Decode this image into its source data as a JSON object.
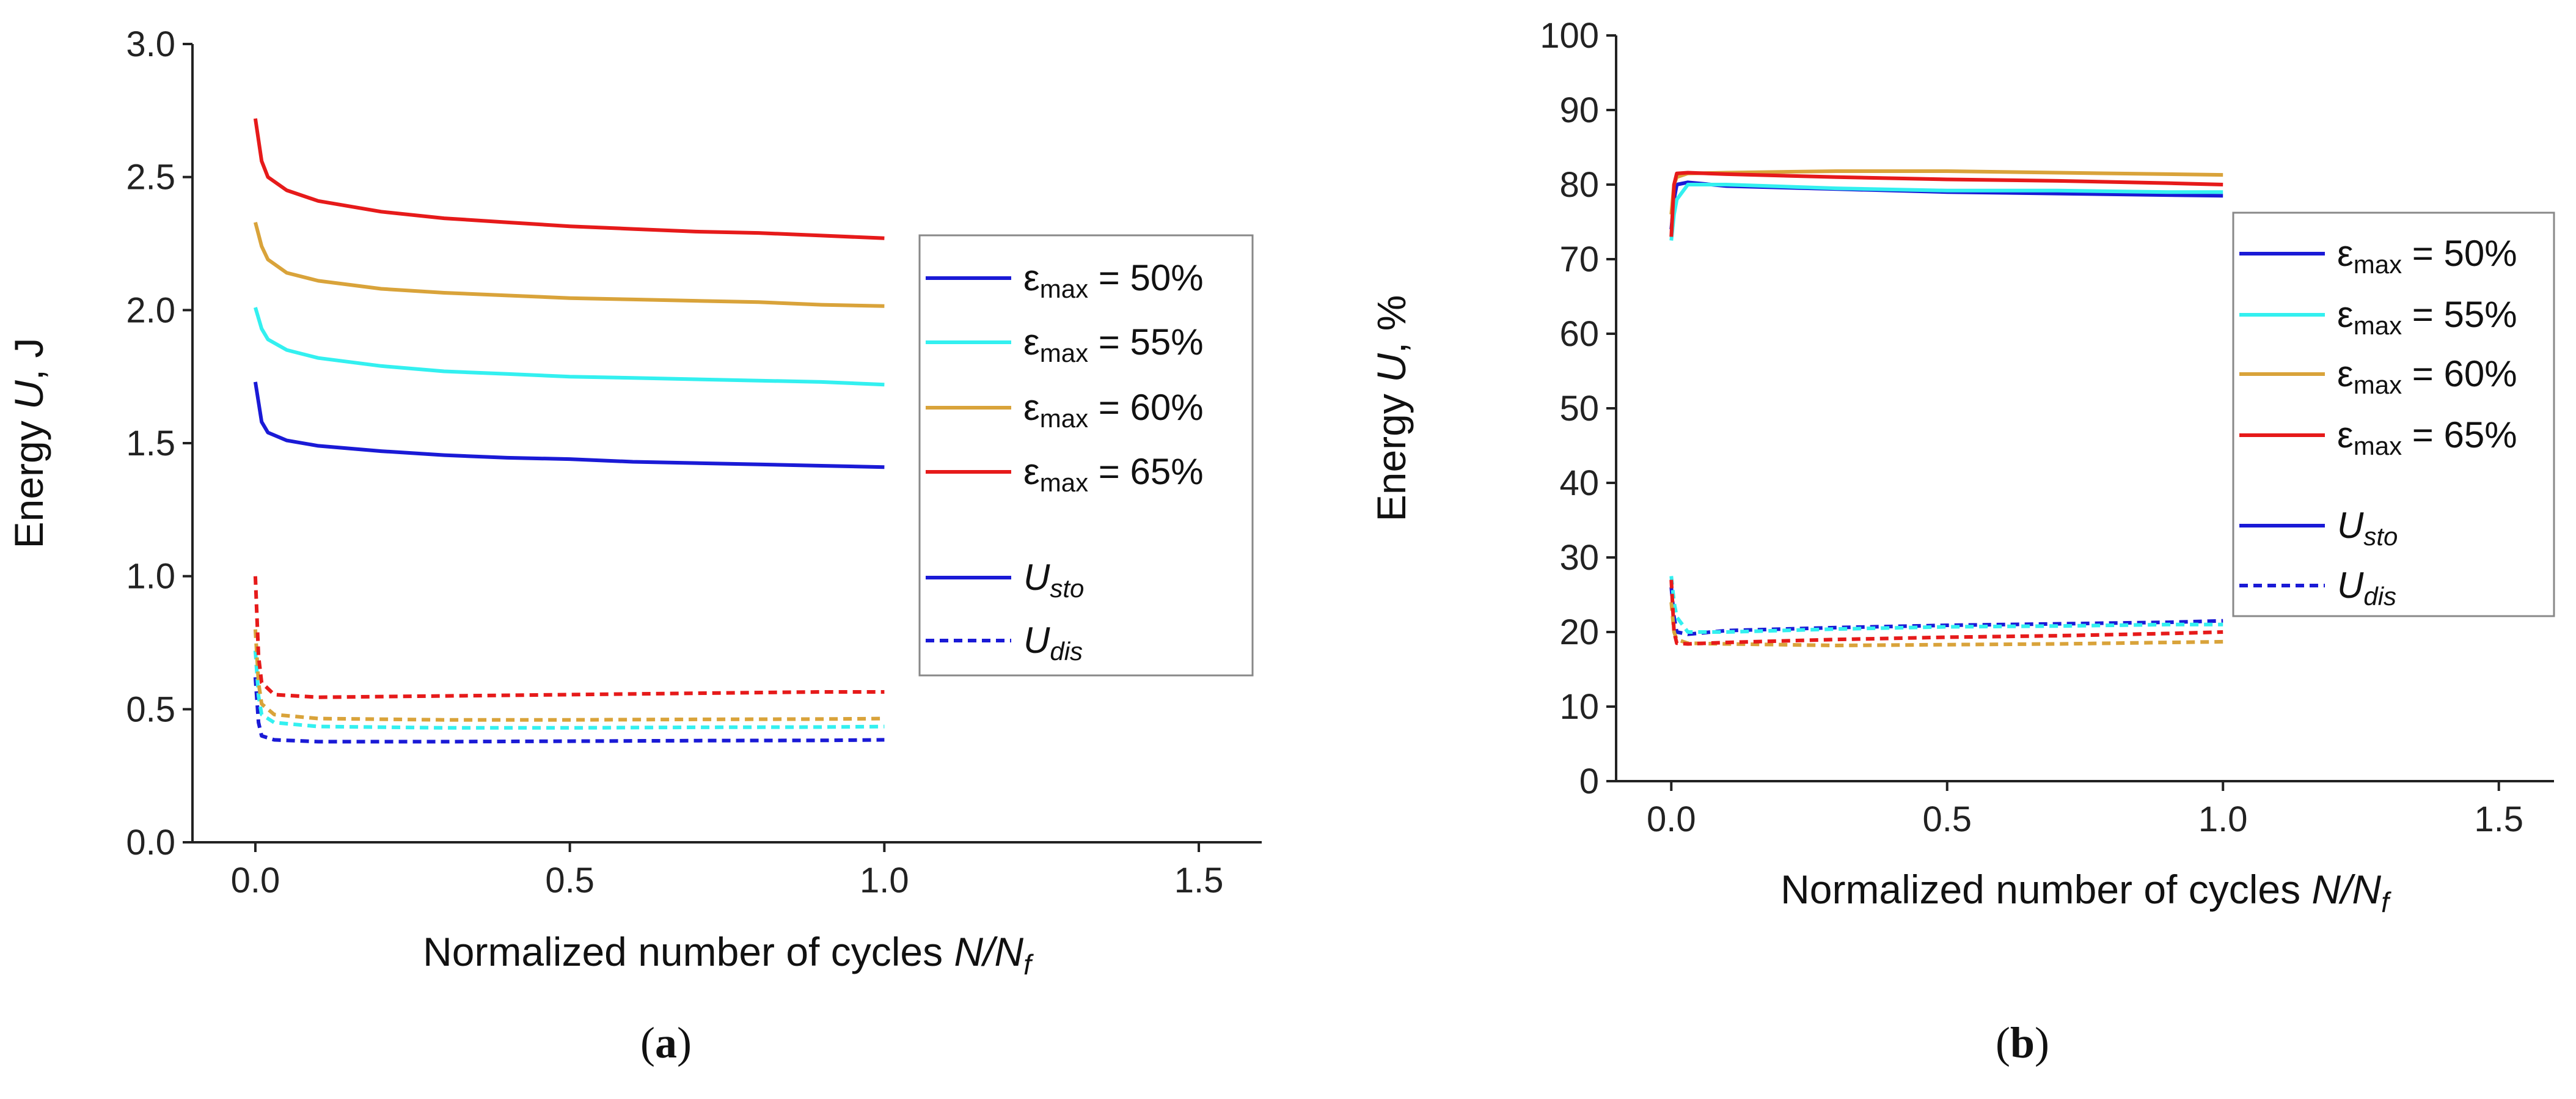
{
  "chart_data": [
    {
      "type": "line",
      "panel": "(a)",
      "panel_letter": "a",
      "xlabel_prefix": "Normalized number of cycles ",
      "xlabel_var": "N/N",
      "xlabel_sub": "f",
      "ylabel_prefix": "Energy ",
      "ylabel_var": "U",
      "ylabel_suffix": ", J",
      "xlim": [
        -0.1,
        1.6
      ],
      "ylim": [
        0.0,
        3.0
      ],
      "xticks": [
        "0.0",
        "0.5",
        "1.0",
        "1.5"
      ],
      "xtick_values": [
        0.0,
        0.5,
        1.0,
        1.5
      ],
      "yticks": [
        "0.0",
        "0.5",
        "1.0",
        "1.5",
        "2.0",
        "2.5",
        "3.0"
      ],
      "ytick_values": [
        0.0,
        0.5,
        1.0,
        1.5,
        2.0,
        2.5,
        3.0
      ],
      "legend": {
        "position": "right",
        "entries": [
          {
            "symbol": "ε",
            "sub": "max",
            "text": " =  50%",
            "color": "#1a1ad6",
            "dash": "solid"
          },
          {
            "symbol": "ε",
            "sub": "max",
            "text": " =  55%",
            "color": "#33f0f0",
            "dash": "solid"
          },
          {
            "symbol": "ε",
            "sub": "max",
            "text": " =  60%",
            "color": "#d9a33a",
            "dash": "solid"
          },
          {
            "symbol": "ε",
            "sub": "max",
            "text": " =  65%",
            "color": "#e61a1a",
            "dash": "solid"
          },
          {
            "symbol": "U",
            "sub": "sto",
            "text": "",
            "color": "#1a1ad6",
            "dash": "solid"
          },
          {
            "symbol": "U",
            "sub": "dis",
            "text": "",
            "color": "#1a1ad6",
            "dash": "dashed"
          }
        ]
      },
      "series": [
        {
          "name": "ε_max = 50% U_sto",
          "color": "#1a1ad6",
          "dash": "solid",
          "x": [
            0.0,
            0.01,
            0.02,
            0.05,
            0.1,
            0.2,
            0.3,
            0.4,
            0.5,
            0.6,
            0.7,
            0.8,
            0.9,
            1.0
          ],
          "y": [
            1.73,
            1.58,
            1.54,
            1.51,
            1.49,
            1.47,
            1.455,
            1.445,
            1.44,
            1.43,
            1.425,
            1.42,
            1.415,
            1.41
          ]
        },
        {
          "name": "ε_max = 55% U_sto",
          "color": "#33f0f0",
          "dash": "solid",
          "x": [
            0.0,
            0.01,
            0.02,
            0.05,
            0.1,
            0.2,
            0.3,
            0.4,
            0.5,
            0.6,
            0.7,
            0.8,
            0.9,
            1.0
          ],
          "y": [
            2.01,
            1.93,
            1.89,
            1.85,
            1.82,
            1.79,
            1.77,
            1.76,
            1.75,
            1.745,
            1.74,
            1.735,
            1.73,
            1.72
          ]
        },
        {
          "name": "ε_max = 60% U_sto",
          "color": "#d9a33a",
          "dash": "solid",
          "x": [
            0.0,
            0.01,
            0.02,
            0.05,
            0.1,
            0.2,
            0.3,
            0.4,
            0.5,
            0.6,
            0.7,
            0.8,
            0.9,
            1.0
          ],
          "y": [
            2.33,
            2.24,
            2.19,
            2.14,
            2.11,
            2.08,
            2.065,
            2.055,
            2.045,
            2.04,
            2.035,
            2.03,
            2.02,
            2.015
          ]
        },
        {
          "name": "ε_max = 65% U_sto",
          "color": "#e61a1a",
          "dash": "solid",
          "x": [
            0.0,
            0.01,
            0.02,
            0.05,
            0.1,
            0.2,
            0.3,
            0.4,
            0.5,
            0.6,
            0.7,
            0.8,
            0.9,
            1.0
          ],
          "y": [
            2.72,
            2.56,
            2.5,
            2.45,
            2.41,
            2.37,
            2.345,
            2.33,
            2.315,
            2.305,
            2.295,
            2.29,
            2.28,
            2.27
          ]
        },
        {
          "name": "ε_max = 50% U_dis",
          "color": "#1a1ad6",
          "dash": "dashed",
          "x": [
            0.0,
            0.005,
            0.01,
            0.03,
            0.1,
            0.3,
            0.5,
            0.7,
            0.9,
            1.0
          ],
          "y": [
            0.62,
            0.45,
            0.4,
            0.385,
            0.378,
            0.378,
            0.38,
            0.382,
            0.383,
            0.385
          ]
        },
        {
          "name": "ε_max = 55% U_dis",
          "color": "#33f0f0",
          "dash": "dashed",
          "x": [
            0.0,
            0.005,
            0.01,
            0.03,
            0.1,
            0.3,
            0.5,
            0.7,
            0.9,
            1.0
          ],
          "y": [
            0.72,
            0.55,
            0.48,
            0.45,
            0.435,
            0.43,
            0.43,
            0.432,
            0.433,
            0.435
          ]
        },
        {
          "name": "ε_max = 60% U_dis",
          "color": "#d9a33a",
          "dash": "dashed",
          "x": [
            0.0,
            0.005,
            0.01,
            0.03,
            0.1,
            0.3,
            0.5,
            0.7,
            0.9,
            1.0
          ],
          "y": [
            0.8,
            0.6,
            0.52,
            0.48,
            0.465,
            0.46,
            0.46,
            0.462,
            0.463,
            0.465
          ]
        },
        {
          "name": "ε_max = 65% U_dis",
          "color": "#e61a1a",
          "dash": "dashed",
          "x": [
            0.0,
            0.005,
            0.01,
            0.03,
            0.1,
            0.3,
            0.5,
            0.7,
            0.9,
            1.0
          ],
          "y": [
            1.0,
            0.7,
            0.6,
            0.555,
            0.545,
            0.55,
            0.555,
            0.56,
            0.565,
            0.565
          ]
        }
      ]
    },
    {
      "type": "line",
      "panel": "(b)",
      "panel_letter": "b",
      "xlabel_prefix": "Normalized number of cycles ",
      "xlabel_var": "N/N",
      "xlabel_sub": "f",
      "ylabel_prefix": "Energy ",
      "ylabel_var": "U",
      "ylabel_suffix": ", %",
      "xlim": [
        -0.1,
        1.6
      ],
      "ylim": [
        0,
        100
      ],
      "xticks": [
        "0.0",
        "0.5",
        "1.0",
        "1.5"
      ],
      "xtick_values": [
        0.0,
        0.5,
        1.0,
        1.5
      ],
      "yticks": [
        "0",
        "10",
        "20",
        "30",
        "40",
        "50",
        "60",
        "70",
        "80",
        "90",
        "100"
      ],
      "ytick_values": [
        0,
        10,
        20,
        30,
        40,
        50,
        60,
        70,
        80,
        90,
        100
      ],
      "legend": {
        "position": "right",
        "entries": [
          {
            "symbol": "ε",
            "sub": "max",
            "text": " =  50%",
            "color": "#1a1ad6",
            "dash": "solid"
          },
          {
            "symbol": "ε",
            "sub": "max",
            "text": " =  55%",
            "color": "#33f0f0",
            "dash": "solid"
          },
          {
            "symbol": "ε",
            "sub": "max",
            "text": " =  60%",
            "color": "#d9a33a",
            "dash": "solid"
          },
          {
            "symbol": "ε",
            "sub": "max",
            "text": " =  65%",
            "color": "#e61a1a",
            "dash": "solid"
          },
          {
            "symbol": "U",
            "sub": "sto",
            "text": "",
            "color": "#1a1ad6",
            "dash": "solid"
          },
          {
            "symbol": "U",
            "sub": "dis",
            "text": "",
            "color": "#1a1ad6",
            "dash": "dashed"
          }
        ]
      },
      "series": [
        {
          "name": "ε_max = 50% U_sto",
          "color": "#1a1ad6",
          "dash": "solid",
          "x": [
            0.0,
            0.005,
            0.01,
            0.03,
            0.1,
            0.3,
            0.5,
            0.7,
            0.9,
            1.0
          ],
          "y": [
            74.0,
            78.0,
            80.0,
            80.3,
            79.8,
            79.4,
            79.0,
            78.8,
            78.6,
            78.5
          ]
        },
        {
          "name": "ε_max = 55% U_sto",
          "color": "#33f0f0",
          "dash": "solid",
          "x": [
            0.0,
            0.005,
            0.01,
            0.03,
            0.1,
            0.3,
            0.5,
            0.7,
            0.9,
            1.0
          ],
          "y": [
            72.5,
            76.0,
            78.0,
            80.0,
            80.0,
            79.5,
            79.2,
            79.2,
            79.0,
            79.0
          ]
        },
        {
          "name": "ε_max = 60% U_sto",
          "color": "#d9a33a",
          "dash": "solid",
          "x": [
            0.0,
            0.005,
            0.01,
            0.03,
            0.1,
            0.3,
            0.5,
            0.7,
            0.9,
            1.0
          ],
          "y": [
            76.0,
            80.0,
            81.0,
            81.5,
            81.6,
            81.8,
            81.8,
            81.6,
            81.4,
            81.3
          ]
        },
        {
          "name": "ε_max = 65% U_sto",
          "color": "#e61a1a",
          "dash": "solid",
          "x": [
            0.0,
            0.005,
            0.01,
            0.03,
            0.1,
            0.3,
            0.5,
            0.7,
            0.9,
            1.0
          ],
          "y": [
            73.0,
            80.0,
            81.5,
            81.6,
            81.4,
            81.0,
            80.7,
            80.5,
            80.2,
            80.0
          ]
        },
        {
          "name": "ε_max = 50% U_dis",
          "color": "#1a1ad6",
          "dash": "dashed",
          "x": [
            0.0,
            0.005,
            0.01,
            0.03,
            0.1,
            0.3,
            0.5,
            0.7,
            0.9,
            1.0
          ],
          "y": [
            26.0,
            22.0,
            20.0,
            19.7,
            20.2,
            20.6,
            20.9,
            21.1,
            21.3,
            21.5
          ]
        },
        {
          "name": "ε_max = 55% U_dis",
          "color": "#33f0f0",
          "dash": "dashed",
          "x": [
            0.0,
            0.005,
            0.01,
            0.03,
            0.1,
            0.3,
            0.5,
            0.7,
            0.9,
            1.0
          ],
          "y": [
            27.5,
            24.0,
            22.0,
            20.0,
            20.0,
            20.4,
            20.7,
            20.8,
            21.0,
            21.0
          ]
        },
        {
          "name": "ε_max = 60% U_dis",
          "color": "#d9a33a",
          "dash": "dashed",
          "x": [
            0.0,
            0.005,
            0.01,
            0.03,
            0.1,
            0.3,
            0.5,
            0.7,
            0.9,
            1.0
          ],
          "y": [
            24.0,
            20.0,
            19.0,
            18.5,
            18.4,
            18.2,
            18.3,
            18.4,
            18.6,
            18.7
          ]
        },
        {
          "name": "ε_max = 65% U_dis",
          "color": "#e61a1a",
          "dash": "dashed",
          "x": [
            0.0,
            0.005,
            0.01,
            0.03,
            0.1,
            0.3,
            0.5,
            0.7,
            0.9,
            1.0
          ],
          "y": [
            27.0,
            20.0,
            18.5,
            18.4,
            18.6,
            19.0,
            19.3,
            19.5,
            19.8,
            20.0
          ]
        }
      ]
    }
  ]
}
